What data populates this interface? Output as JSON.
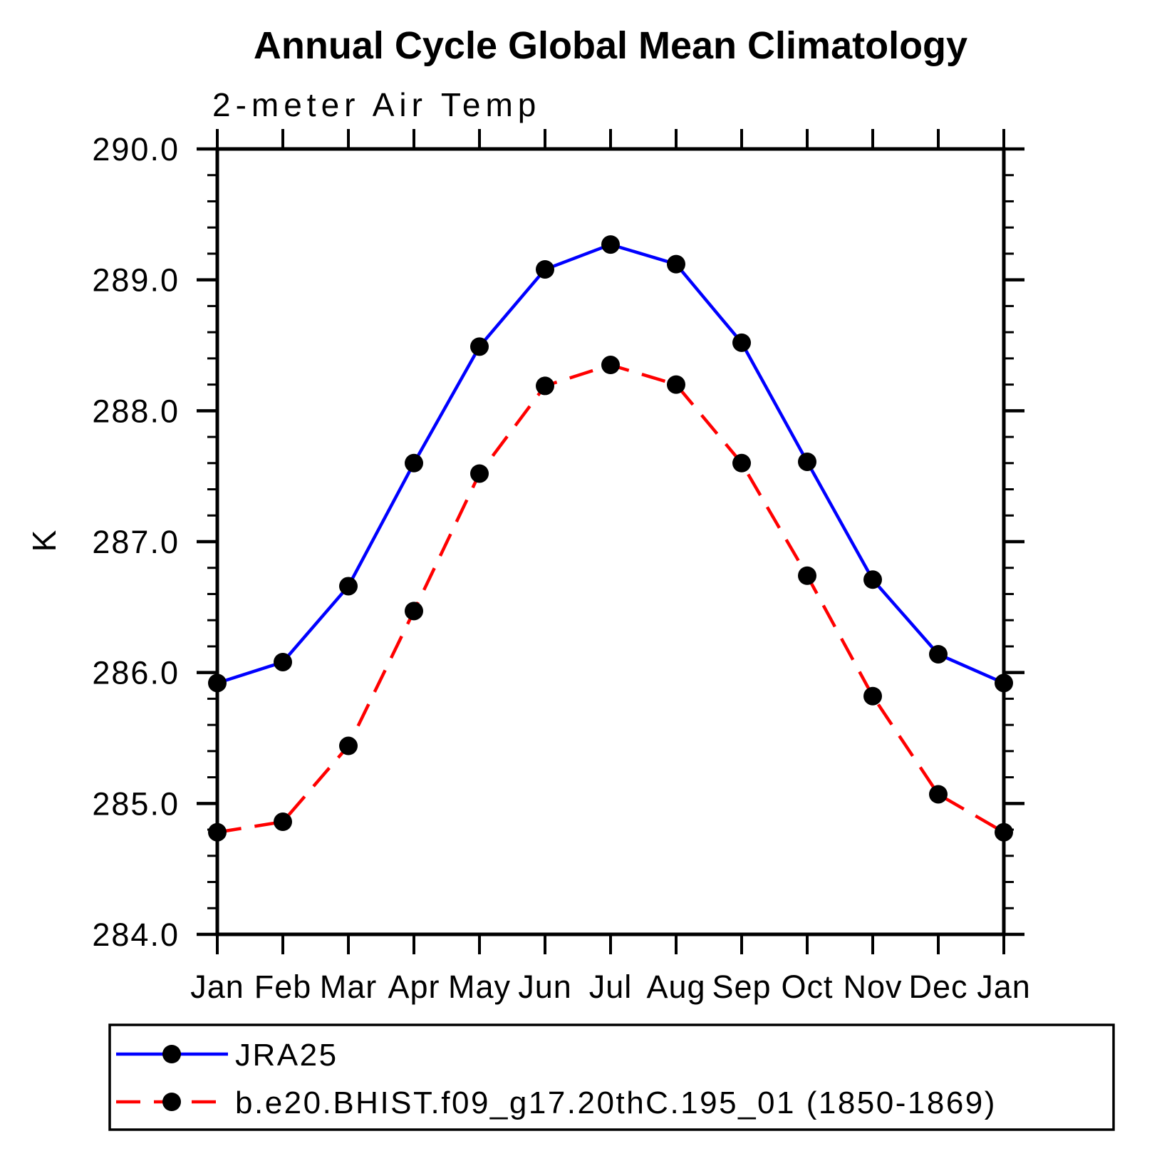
{
  "title": "Annual Cycle Global Mean Climatology",
  "subtitle": "2-meter Air Temp",
  "colors": {
    "background": "#ffffff",
    "axis": "#000000",
    "text": "#000000",
    "series1_line": "#0000ff",
    "series2_line": "#ff0000",
    "marker": "#000000"
  },
  "chart_data": {
    "type": "line",
    "x_categories": [
      "Jan",
      "Feb",
      "Mar",
      "Apr",
      "May",
      "Jun",
      "Jul",
      "Aug",
      "Sep",
      "Oct",
      "Nov",
      "Dec",
      "Jan"
    ],
    "ylabel": "K",
    "ylim": [
      284.0,
      290.0
    ],
    "y_tick_labels": [
      "284.0",
      "285.0",
      "286.0",
      "287.0",
      "288.0",
      "289.0",
      "290.0"
    ],
    "y_major_step": 1.0,
    "y_minor_step": 0.2,
    "grid": false,
    "legend_position": "bottom-left",
    "series": [
      {
        "name": "JRA25",
        "line_color": "#0000ff",
        "line_style": "solid",
        "marker": "circle",
        "marker_color": "#000000",
        "values": [
          285.92,
          286.08,
          286.66,
          287.6,
          288.49,
          289.08,
          289.27,
          289.12,
          288.52,
          287.61,
          286.71,
          286.14,
          285.92
        ]
      },
      {
        "name": "b.e20.BHIST.f09_g17.20thC.195_01 (1850-1869)",
        "line_color": "#ff0000",
        "line_style": "dashed",
        "marker": "circle",
        "marker_color": "#000000",
        "values": [
          284.78,
          284.86,
          285.44,
          286.47,
          287.52,
          288.19,
          288.35,
          288.2,
          287.6,
          286.74,
          285.82,
          285.07,
          284.78
        ]
      }
    ]
  }
}
